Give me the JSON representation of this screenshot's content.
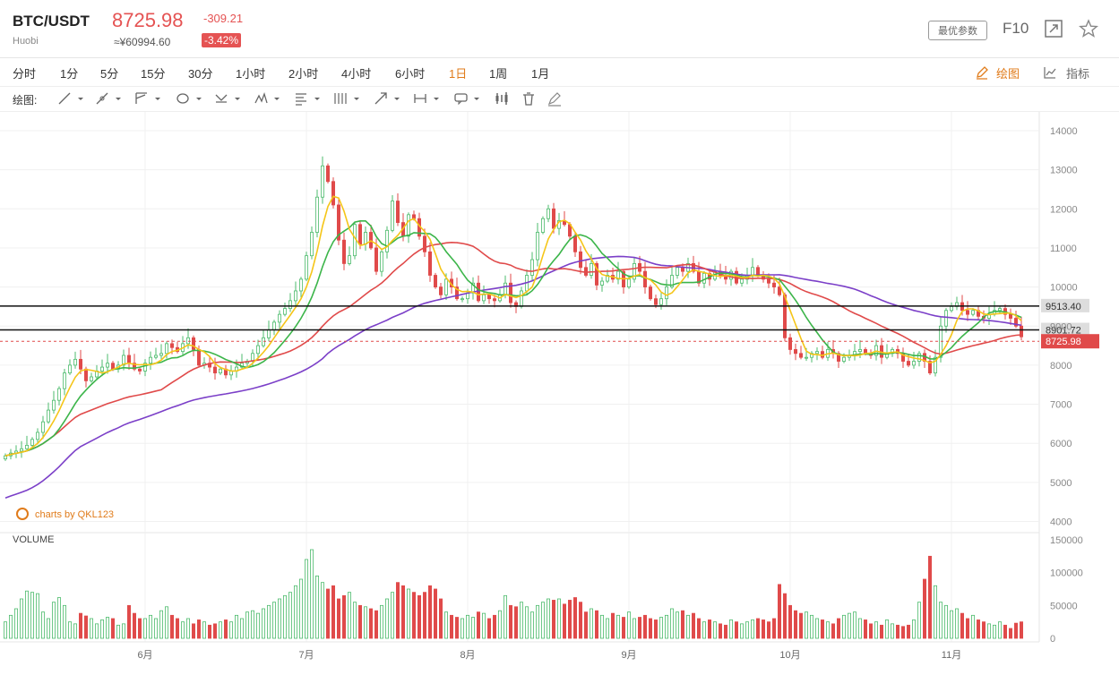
{
  "header": {
    "pair": "BTC/USDT",
    "exchange": "Huobi",
    "price": "8725.98",
    "cny_price": "≈¥60994.60",
    "change": "-309.21",
    "change_pct": "-3.42%",
    "params_label": "最优参数",
    "f10_label": "F10"
  },
  "timeframes": [
    "分时",
    "1分",
    "5分",
    "15分",
    "30分",
    "1小时",
    "2小时",
    "4小时",
    "6小时",
    "1日",
    "1周",
    "1月"
  ],
  "active_timeframe": "1日",
  "toolbar_right": {
    "draw_label": "绘图",
    "indicator_label": "指标"
  },
  "draw_toolbar": {
    "label": "绘图:"
  },
  "watermark": "charts by QKL123",
  "volume_label": "VOLUME",
  "colors": {
    "up": "#4cbb6c",
    "down": "#e04a4a",
    "ma5": "#f5c518",
    "ma10": "#3cb54a",
    "ma30": "#e04a4a",
    "ma60": "#7b3fc8",
    "accent": "#e07b1a"
  },
  "chart_data": {
    "type": "candlestick",
    "title": "BTC/USDT 1日",
    "ylim": [
      4000,
      14000
    ],
    "y_ticks": [
      4000,
      5000,
      6000,
      7000,
      8000,
      9000,
      10000,
      11000,
      12000,
      13000,
      14000
    ],
    "vol_ylim": [
      0,
      150000
    ],
    "vol_ticks": [
      0,
      50000,
      100000,
      150000
    ],
    "x_month_labels": [
      "6月",
      "7月",
      "8月",
      "9月",
      "10月",
      "11月"
    ],
    "x_month_day_index": [
      26,
      56,
      86,
      116,
      146,
      176
    ],
    "horizontal_lines": [
      {
        "value": 9513.4,
        "label": "9513.40"
      },
      {
        "value": 8901.72,
        "label": "8901.72"
      }
    ],
    "last_price": {
      "value": 8725.98,
      "label": "8725.98"
    },
    "close": [
      5680,
      5750,
      5800,
      5860,
      5950,
      6100,
      6280,
      6550,
      6850,
      7100,
      7400,
      7800,
      8000,
      8150,
      7900,
      7600,
      7700,
      7850,
      7950,
      8050,
      7900,
      8000,
      8250,
      8050,
      7900,
      7850,
      8050,
      8200,
      8250,
      8300,
      8550,
      8450,
      8350,
      8550,
      8700,
      8400,
      8000,
      8050,
      7950,
      7800,
      7900,
      7750,
      7850,
      7950,
      8050,
      8100,
      8300,
      8500,
      8700,
      8900,
      9100,
      9300,
      9450,
      9650,
      9900,
      10200,
      10800,
      11400,
      12300,
      13100,
      12700,
      12100,
      11200,
      10600,
      10800,
      11600,
      11100,
      11400,
      11000,
      10400,
      10900,
      11450,
      12200,
      11650,
      11300,
      11850,
      11750,
      11300,
      10900,
      10300,
      10000,
      9800,
      10200,
      10000,
      9700,
      9700,
      9850,
      10100,
      9650,
      9800,
      9700,
      9650,
      9800,
      10100,
      9600,
      9500,
      9900,
      10300,
      10700,
      11400,
      11750,
      12000,
      11500,
      11700,
      11600,
      11300,
      10900,
      10500,
      10300,
      10600,
      10050,
      10150,
      10300,
      10200,
      10400,
      10000,
      10200,
      10600,
      10400,
      10000,
      9700,
      9550,
      9700,
      10000,
      10300,
      10500,
      10400,
      10600,
      10400,
      10100,
      10350,
      10200,
      10400,
      10300,
      10200,
      10400,
      10100,
      10200,
      10300,
      10500,
      10300,
      10200,
      10100,
      10000,
      9800,
      8700,
      8400,
      8300,
      8200,
      8200,
      8300,
      8350,
      8200,
      8400,
      8300,
      8100,
      8200,
      8250,
      8350,
      8400,
      8300,
      8250,
      8500,
      8200,
      8300,
      8400,
      8300,
      8100,
      8000,
      8100,
      8300,
      8100,
      7800,
      8200,
      9000,
      9400,
      9500,
      9600,
      9400,
      9300,
      9400,
      9250,
      9200,
      9300,
      9400,
      9450,
      9300,
      9200,
      9000,
      8726
    ],
    "volume": [
      25000,
      35000,
      45000,
      60000,
      72000,
      70000,
      68000,
      40000,
      30000,
      55000,
      62000,
      50000,
      25000,
      22000,
      38000,
      34000,
      30000,
      22000,
      28000,
      32000,
      30000,
      20000,
      22000,
      50000,
      38000,
      30000,
      30000,
      35000,
      30000,
      42000,
      48000,
      35000,
      30000,
      25000,
      30000,
      22000,
      28000,
      25000,
      20000,
      22000,
      25000,
      28000,
      25000,
      35000,
      30000,
      40000,
      42000,
      38000,
      45000,
      50000,
      55000,
      60000,
      65000,
      70000,
      80000,
      90000,
      120000,
      135000,
      95000,
      85000,
      75000,
      80000,
      60000,
      65000,
      70000,
      55000,
      50000,
      48000,
      45000,
      42000,
      50000,
      60000,
      70000,
      85000,
      80000,
      75000,
      70000,
      65000,
      70000,
      80000,
      75000,
      60000,
      40000,
      35000,
      32000,
      30000,
      35000,
      32000,
      40000,
      38000,
      30000,
      35000,
      42000,
      65000,
      50000,
      48000,
      55000,
      48000,
      40000,
      50000,
      55000,
      60000,
      58000,
      60000,
      52000,
      58000,
      62000,
      55000,
      40000,
      45000,
      42000,
      35000,
      30000,
      38000,
      35000,
      32000,
      40000,
      30000,
      32000,
      35000,
      30000,
      28000,
      32000,
      35000,
      45000,
      40000,
      42000,
      35000,
      38000,
      30000,
      25000,
      28000,
      25000,
      22000,
      20000,
      28000,
      25000,
      22000,
      25000,
      28000,
      30000,
      28000,
      25000,
      30000,
      82000,
      68000,
      50000,
      42000,
      38000,
      40000,
      35000,
      30000,
      28000,
      25000,
      22000,
      30000,
      35000,
      38000,
      40000,
      30000,
      28000,
      22000,
      25000,
      20000,
      28000,
      22000,
      20000,
      18000,
      20000,
      28000,
      55000,
      90000,
      125000,
      80000,
      55000,
      50000,
      42000,
      45000,
      38000,
      30000,
      35000,
      28000,
      25000,
      22000,
      20000,
      25000,
      20000,
      15000,
      23000,
      25000
    ]
  }
}
